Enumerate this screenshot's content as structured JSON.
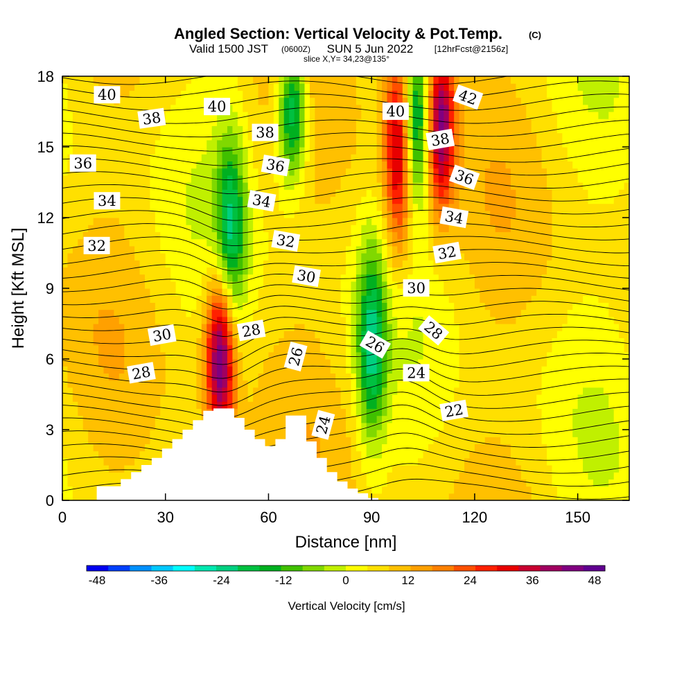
{
  "chart_data": {
    "type": "heatmap",
    "title": "Angled Section: Vertical Velocity & Pot.Temp.",
    "title_mark": "(C)",
    "subtitle": {
      "valid": "Valid 1500 JST",
      "utc": "(0600Z)",
      "date": "SUN 5 Jun 2022",
      "forecast": "[12hrFcst@2156z]",
      "slice": "slice X,Y= 34,23@135°"
    },
    "xlabel": "Distance [nm]",
    "ylabel": "Height [Kft MSL]",
    "xlim": [
      0,
      165
    ],
    "ylim": [
      0,
      18
    ],
    "xticks": [
      "0",
      "30",
      "60",
      "90",
      "120",
      "150"
    ],
    "xtick_values": [
      0,
      30,
      60,
      90,
      120,
      150
    ],
    "yticks": [
      "0",
      "3",
      "6",
      "9",
      "12",
      "15",
      "18"
    ],
    "ytick_values": [
      0,
      3,
      6,
      9,
      12,
      15,
      18
    ],
    "colorbar": {
      "label": "Vertical Velocity [cm/s]",
      "min": -50,
      "max": 50,
      "tick_labels": [
        "-48",
        "-36",
        "-24",
        "-12",
        "0",
        "12",
        "24",
        "36",
        "48"
      ],
      "tick_values": [
        -48,
        -36,
        -24,
        -12,
        0,
        12,
        24,
        36,
        48
      ],
      "colors": [
        "#0000f0",
        "#0040ff",
        "#0090ff",
        "#00c8ff",
        "#00ffff",
        "#00e8b0",
        "#00d080",
        "#00c040",
        "#00b020",
        "#40c000",
        "#80d800",
        "#c0f000",
        "#ffff00",
        "#ffe000",
        "#ffc000",
        "#ffa000",
        "#ff8000",
        "#ff5000",
        "#ff2000",
        "#e80000",
        "#c80030",
        "#a00060",
        "#800080",
        "#600090"
      ]
    },
    "velocity_field": {
      "units": "cm/s",
      "features": [
        {
          "name": "downdraft core A",
          "x": 49,
          "z_from": 9,
          "z_to": 14,
          "value": -24
        },
        {
          "name": "downdraft core B",
          "x": 67,
          "z_from": 15,
          "z_to": 18,
          "value": -30
        },
        {
          "name": "downdraft core C",
          "x": 90,
          "z_from": 4,
          "z_to": 9,
          "value": -26
        },
        {
          "name": "downdraft core D",
          "x": 103,
          "z_from": 14,
          "z_to": 18,
          "value": -30
        },
        {
          "name": "updraft core A",
          "x": 46,
          "z_from": 4,
          "z_to": 8,
          "value": 42
        },
        {
          "name": "updraft core B",
          "x": 98,
          "z_from": 12,
          "z_to": 18,
          "value": 34
        },
        {
          "name": "updraft core C",
          "x": 110,
          "z_from": 14,
          "z_to": 18,
          "value": 38
        }
      ]
    },
    "theta_contour_labels": [
      {
        "text": "40",
        "x": 13,
        "z": 17.2,
        "angle": 0
      },
      {
        "text": "38",
        "x": 26,
        "z": 16.2,
        "angle": -8
      },
      {
        "text": "40",
        "x": 45,
        "z": 16.7,
        "angle": 0
      },
      {
        "text": "38",
        "x": 59,
        "z": 15.6,
        "angle": 0
      },
      {
        "text": "40",
        "x": 97,
        "z": 16.5,
        "angle": 0
      },
      {
        "text": "42",
        "x": 118,
        "z": 17.1,
        "angle": 20
      },
      {
        "text": "38",
        "x": 110,
        "z": 15.3,
        "angle": -10
      },
      {
        "text": "36",
        "x": 6,
        "z": 14.3,
        "angle": 0
      },
      {
        "text": "36",
        "x": 62,
        "z": 14.2,
        "angle": 10
      },
      {
        "text": "36",
        "x": 117,
        "z": 13.7,
        "angle": 20
      },
      {
        "text": "34",
        "x": 13,
        "z": 12.7,
        "angle": 0
      },
      {
        "text": "34",
        "x": 58,
        "z": 12.7,
        "angle": 10
      },
      {
        "text": "34",
        "x": 114,
        "z": 12,
        "angle": 10
      },
      {
        "text": "32",
        "x": 10,
        "z": 10.8,
        "angle": 0
      },
      {
        "text": "32",
        "x": 65,
        "z": 11,
        "angle": 10
      },
      {
        "text": "32",
        "x": 112,
        "z": 10.5,
        "angle": -10
      },
      {
        "text": "30",
        "x": 71,
        "z": 9.5,
        "angle": 10
      },
      {
        "text": "30",
        "x": 103,
        "z": 9,
        "angle": 0
      },
      {
        "text": "30",
        "x": 29,
        "z": 7,
        "angle": -10
      },
      {
        "text": "28",
        "x": 55,
        "z": 7.2,
        "angle": -10
      },
      {
        "text": "28",
        "x": 108,
        "z": 7.2,
        "angle": 40
      },
      {
        "text": "26",
        "x": 68,
        "z": 6.1,
        "angle": -75
      },
      {
        "text": "26",
        "x": 91,
        "z": 6.6,
        "angle": 30
      },
      {
        "text": "28",
        "x": 23,
        "z": 5.4,
        "angle": -10
      },
      {
        "text": "24",
        "x": 103,
        "z": 5.4,
        "angle": 0
      },
      {
        "text": "24",
        "x": 76,
        "z": 3.2,
        "angle": -75
      },
      {
        "text": "22",
        "x": 114,
        "z": 3.8,
        "angle": -10
      }
    ],
    "terrain": {
      "units": "Kft MSL",
      "x": [
        0,
        10,
        17,
        20,
        23,
        26,
        29,
        32,
        35,
        38,
        41,
        44,
        47,
        50,
        53,
        56,
        59,
        62,
        65,
        68,
        71,
        74,
        77,
        80,
        83,
        86,
        89,
        92,
        165
      ],
      "z": [
        0,
        0.6,
        0.9,
        1.2,
        1.5,
        1.8,
        2.2,
        2.6,
        3.0,
        3.4,
        3.8,
        3.9,
        3.9,
        3.5,
        3.0,
        2.6,
        2.3,
        2.6,
        3.6,
        3.6,
        2.5,
        1.8,
        1.2,
        0.8,
        0.5,
        0.3,
        0.1,
        0,
        0
      ]
    }
  }
}
